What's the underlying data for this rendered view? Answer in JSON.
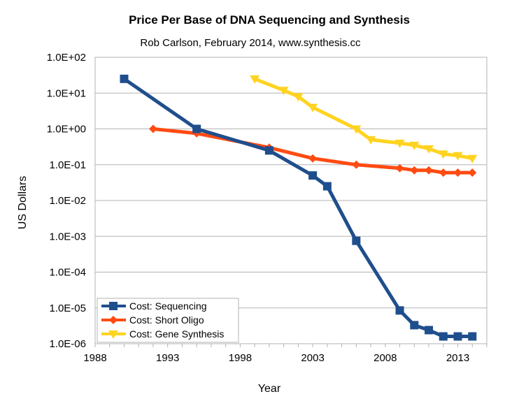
{
  "chart_data": {
    "type": "line",
    "title": "Price Per Base of DNA Sequencing and Synthesis",
    "subtitle": "Rob Carlson, February 2014, www.synthesis.cc",
    "xlabel": "Year",
    "ylabel": "US Dollars",
    "x_ticks": [
      "1988",
      "1993",
      "1998",
      "2003",
      "2008",
      "2013"
    ],
    "y_ticks": [
      "1.0E+02",
      "1.0E+01",
      "1.0E+00",
      "1.0E-01",
      "1.0E-02",
      "1.0E-03",
      "1.0E-04",
      "1.0E-05",
      "1.0E-06"
    ],
    "xlim": [
      1988,
      2015
    ],
    "ylim": [
      1e-06,
      100
    ],
    "y_scale": "log",
    "grid": "horizontal",
    "legend_position": "bottom-left",
    "series": [
      {
        "name": "Cost: Sequencing",
        "color": "#1f4e8c",
        "marker": "square",
        "points": [
          [
            1990,
            25
          ],
          [
            1995,
            1.0
          ],
          [
            2000,
            0.25
          ],
          [
            2003,
            0.05
          ],
          [
            2004,
            0.025
          ],
          [
            2006,
            0.00075
          ],
          [
            2009,
            8.5e-06
          ],
          [
            2010,
            3.3e-06
          ],
          [
            2011,
            2.4e-06
          ],
          [
            2012,
            1.6e-06
          ],
          [
            2013,
            1.6e-06
          ],
          [
            2014,
            1.6e-06
          ]
        ]
      },
      {
        "name": "Cost: Short Oligo",
        "color": "#ff4b12",
        "marker": "diamond",
        "points": [
          [
            1992,
            1.0
          ],
          [
            1995,
            0.75
          ],
          [
            2000,
            0.3
          ],
          [
            2003,
            0.15
          ],
          [
            2006,
            0.1
          ],
          [
            2009,
            0.08
          ],
          [
            2010,
            0.07
          ],
          [
            2011,
            0.07
          ],
          [
            2012,
            0.06
          ],
          [
            2013,
            0.06
          ],
          [
            2014,
            0.06
          ]
        ]
      },
      {
        "name": "Cost: Gene Synthesis",
        "color": "#ffd320",
        "marker": "triangle-down",
        "points": [
          [
            1999,
            25
          ],
          [
            2001,
            12
          ],
          [
            2002,
            8
          ],
          [
            2003,
            4
          ],
          [
            2006,
            1.0
          ],
          [
            2007,
            0.5
          ],
          [
            2009,
            0.4
          ],
          [
            2010,
            0.35
          ],
          [
            2011,
            0.28
          ],
          [
            2012,
            0.2
          ],
          [
            2013,
            0.18
          ],
          [
            2014,
            0.15
          ]
        ]
      }
    ]
  }
}
